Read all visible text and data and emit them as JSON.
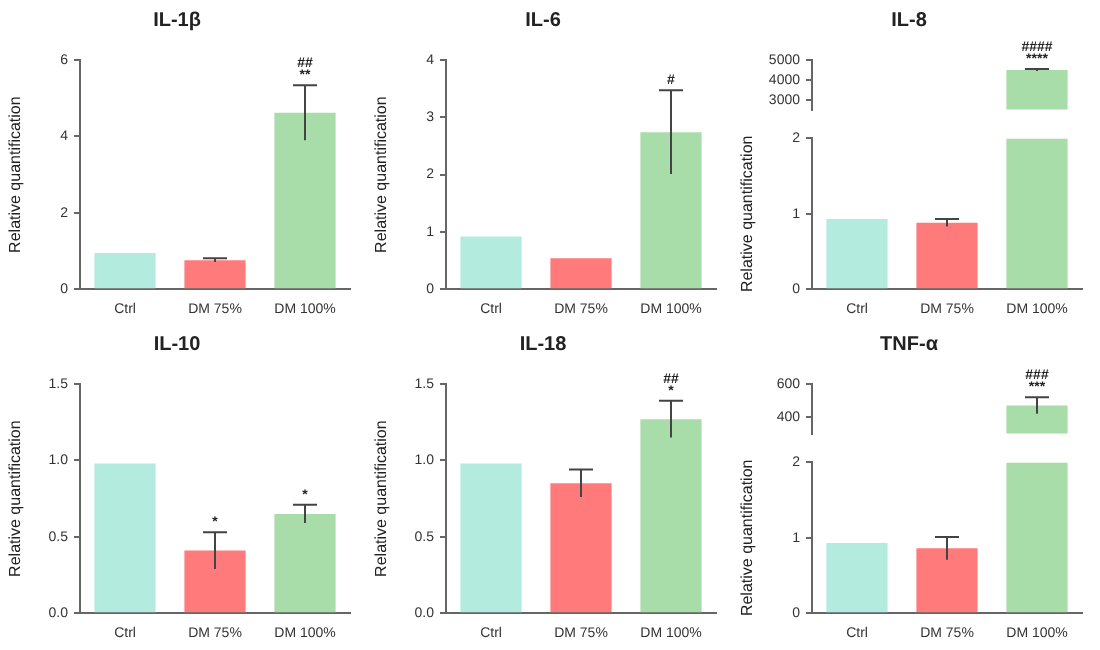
{
  "chart_data": [
    {
      "type": "bar",
      "title": "IL-1β",
      "ylabel": "Relative quantification",
      "categories": [
        "Ctrl",
        "DM 75%",
        "DM 100%"
      ],
      "values": [
        0.95,
        0.76,
        4.62
      ],
      "errors": [
        null,
        0.05,
        0.72
      ],
      "colors": [
        "#b3ebde",
        "#ff7b7b",
        "#a8dca8"
      ],
      "ylim": [
        0,
        6
      ],
      "yticks": [
        0,
        2,
        4,
        6
      ],
      "grid": false,
      "annotations": [
        {
          "text": "##",
          "x": "DM 100%",
          "y": 5.34
        },
        {
          "text": "**",
          "x": "DM 100%",
          "y": 5.34
        }
      ]
    },
    {
      "type": "bar",
      "title": "IL-6",
      "ylabel": "Relative quantification",
      "categories": [
        "Ctrl",
        "DM 75%",
        "DM 100%"
      ],
      "values": [
        0.92,
        0.54,
        2.74
      ],
      "errors": [
        null,
        null,
        0.73
      ],
      "colors": [
        "#b3ebde",
        "#ff7b7b",
        "#a8dca8"
      ],
      "ylim": [
        0,
        4
      ],
      "yticks": [
        0,
        1,
        2,
        3,
        4
      ],
      "grid": false,
      "annotations": [
        {
          "text": "#",
          "x": "DM 100%",
          "y": 3.47
        }
      ]
    },
    {
      "type": "bar",
      "title": "IL-8",
      "categories": [
        "Ctrl",
        "DM 75%",
        "DM 100%"
      ],
      "values": [
        null,
        null,
        4500
      ],
      "errors": [
        null,
        null,
        50
      ],
      "colors": [
        "#b3ebde",
        "#ff7b7b",
        "#a8dca8"
      ],
      "ylim": [
        2500,
        5000
      ],
      "yticks": [
        3000,
        4000,
        5000
      ],
      "tick_labels": "y",
      "grid": false,
      "annotations": [
        {
          "text": "####",
          "x": "DM 100%",
          "y": 4550
        },
        {
          "text": "****",
          "x": "DM 100%",
          "y": 4550
        }
      ]
    },
    {
      "type": "bar",
      "ylabel": "Relative quantification",
      "categories": [
        "Ctrl",
        "DM 75%",
        "DM 100%"
      ],
      "values": [
        0.93,
        0.88,
        2
      ],
      "errors": [
        null,
        0.05,
        null
      ],
      "colors": [
        "#b3ebde",
        "#ff7b7b",
        "#a8dca8"
      ],
      "ylim": [
        0,
        2
      ],
      "yticks": [
        0,
        1,
        2
      ],
      "grid": false
    },
    {
      "type": "bar",
      "title": "IL-10",
      "ylabel": "Relative quantification",
      "categories": [
        "Ctrl",
        "DM 75%",
        "DM 100%"
      ],
      "values": [
        0.98,
        0.41,
        0.65
      ],
      "errors": [
        null,
        0.12,
        0.06
      ],
      "colors": [
        "#b3ebde",
        "#ff7b7b",
        "#a8dca8"
      ],
      "ylim": [
        0,
        1.5
      ],
      "yticks": [
        {
          "value": 0,
          "label": "0.0"
        },
        {
          "value": 0.5,
          "label": "0.5"
        },
        {
          "value": 1,
          "label": "1.0"
        },
        {
          "value": 1.5,
          "label": "1.5"
        }
      ],
      "grid": false,
      "annotations": [
        {
          "text": "*",
          "x": "DM 75%",
          "y": 0.53
        },
        {
          "text": "*",
          "x": "DM 100%",
          "y": 0.71
        }
      ]
    },
    {
      "type": "bar",
      "title": "IL-18",
      "ylabel": "Relative quantification",
      "categories": [
        "Ctrl",
        "DM 75%",
        "DM 100%"
      ],
      "values": [
        0.98,
        0.85,
        1.27
      ],
      "errors": [
        null,
        0.09,
        0.12
      ],
      "colors": [
        "#b3ebde",
        "#ff7b7b",
        "#a8dca8"
      ],
      "ylim": [
        0,
        1.5
      ],
      "yticks": [
        {
          "value": 0,
          "label": "0.0"
        },
        {
          "value": 0.5,
          "label": "0.5"
        },
        {
          "value": 1,
          "label": "1.0"
        },
        {
          "value": 1.5,
          "label": "1.5"
        }
      ],
      "grid": false,
      "annotations": [
        {
          "text": "##",
          "x": "DM 100%",
          "y": 1.39
        },
        {
          "text": "*",
          "x": "DM 100%",
          "y": 1.39
        }
      ]
    },
    {
      "type": "bar",
      "title": "TNF-α",
      "categories": [
        "Ctrl",
        "DM 75%",
        "DM 100%"
      ],
      "values": [
        null,
        null,
        470
      ],
      "errors": [
        null,
        null,
        50
      ],
      "colors": [
        "#b3ebde",
        "#ff7b7b",
        "#a8dca8"
      ],
      "ylim": [
        300,
        600
      ],
      "yticks": [
        400,
        600
      ],
      "tick_labels": "y",
      "grid": false,
      "annotations": [
        {
          "text": "###",
          "x": "DM 100%",
          "y": 520
        },
        {
          "text": "***",
          "x": "DM 100%",
          "y": 520
        }
      ]
    },
    {
      "type": "bar",
      "ylabel": "Relative quantification",
      "categories": [
        "Ctrl",
        "DM 75%",
        "DM 100%"
      ],
      "values": [
        0.93,
        0.86,
        2
      ],
      "errors": [
        null,
        0.15,
        null
      ],
      "colors": [
        "#b3ebde",
        "#ff7b7b",
        "#a8dca8"
      ],
      "ylim": [
        0,
        2
      ],
      "yticks": [
        0,
        1,
        2
      ],
      "grid": false
    }
  ]
}
